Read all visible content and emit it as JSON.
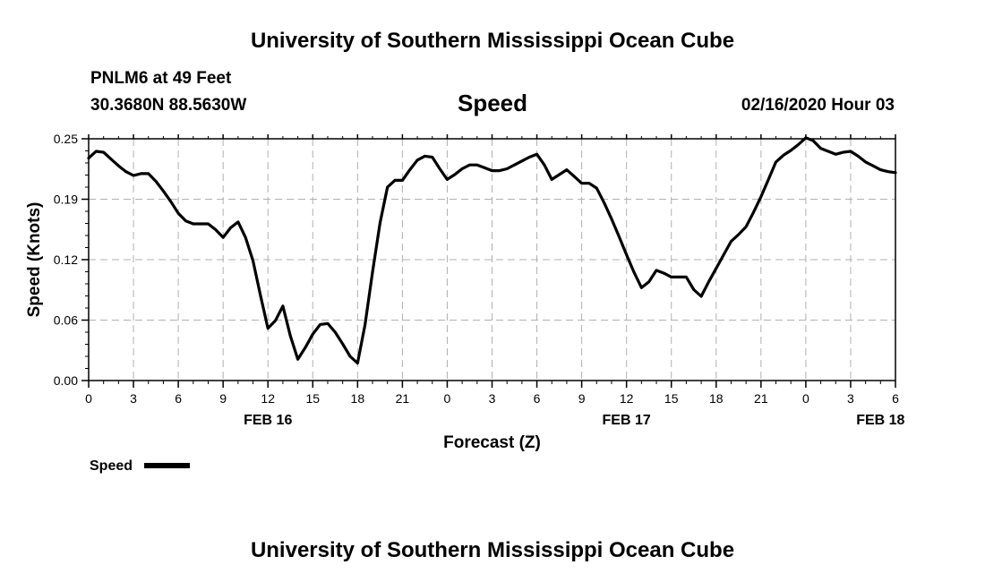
{
  "header": {
    "title": "University of Southern Mississippi Ocean Cube",
    "station": "PNLM6 at 49 Feet",
    "coordinates": "30.3680N 88.5630W",
    "panel_title": "Speed",
    "timestamp": "02/16/2020 Hour 03"
  },
  "footer": {
    "title": "University of Southern Mississippi Ocean Cube"
  },
  "colors": {
    "line": "#000000",
    "grid": "#b0b0b0"
  },
  "chart_data": {
    "type": "line",
    "xlabel": "Forecast (Z)",
    "ylabel": "Speed (Knots)",
    "xlim_hours_from_feb16_00z": [
      0,
      54
    ],
    "ylim": [
      0.0,
      0.25
    ],
    "grid": true,
    "y_ticks": [
      "0.00",
      "0.06",
      "0.12",
      "0.19",
      "0.25"
    ],
    "x_ticks": [
      "0",
      "3",
      "6",
      "9",
      "12",
      "15",
      "18",
      "21",
      "0",
      "3",
      "6",
      "9",
      "12",
      "15",
      "18",
      "21",
      "0",
      "3",
      "6"
    ],
    "date_labels": [
      "FEB 16",
      "FEB 17",
      "FEB 18"
    ],
    "legend": {
      "position": "bottom-left"
    },
    "series": [
      {
        "name": "Speed",
        "x_hours_from_feb16_00z": [
          0,
          0.5,
          1,
          1.5,
          2,
          2.5,
          3,
          3.5,
          4,
          4.5,
          5,
          5.5,
          6,
          6.5,
          7,
          7.5,
          8,
          8.5,
          9,
          9.5,
          10,
          10.5,
          11,
          11.5,
          12,
          12.5,
          13,
          13.5,
          14,
          14.5,
          15,
          15.5,
          16,
          16.5,
          17,
          17.5,
          18,
          18.5,
          19,
          19.5,
          20,
          20.5,
          21,
          21.5,
          22,
          22.5,
          23,
          23.5,
          24,
          24.5,
          25,
          25.5,
          26,
          26.5,
          27,
          27.5,
          28,
          28.5,
          29,
          29.5,
          30,
          30.5,
          31,
          31.5,
          32,
          32.5,
          33,
          33.5,
          34,
          34.5,
          35,
          35.5,
          36,
          36.5,
          37,
          37.5,
          38,
          38.5,
          39,
          39.5,
          40,
          40.5,
          41,
          41.5,
          42,
          42.5,
          43,
          43.5,
          44,
          44.5,
          45,
          45.5,
          46,
          46.5,
          47,
          47.5,
          48,
          48.5,
          49,
          49.5,
          50,
          50.5,
          51,
          51.5,
          52,
          52.5,
          53,
          53.5,
          54
        ],
        "values": [
          0.23,
          0.237,
          0.236,
          0.229,
          0.222,
          0.216,
          0.212,
          0.214,
          0.214,
          0.206,
          0.196,
          0.185,
          0.173,
          0.165,
          0.162,
          0.162,
          0.162,
          0.156,
          0.148,
          0.158,
          0.164,
          0.148,
          0.124,
          0.088,
          0.054,
          0.062,
          0.077,
          0.046,
          0.022,
          0.034,
          0.048,
          0.058,
          0.059,
          0.05,
          0.038,
          0.025,
          0.018,
          0.058,
          0.112,
          0.163,
          0.2,
          0.207,
          0.207,
          0.218,
          0.228,
          0.232,
          0.231,
          0.219,
          0.208,
          0.213,
          0.219,
          0.223,
          0.223,
          0.22,
          0.217,
          0.217,
          0.219,
          0.223,
          0.227,
          0.231,
          0.234,
          0.223,
          0.208,
          0.213,
          0.218,
          0.211,
          0.204,
          0.204,
          0.199,
          0.184,
          0.167,
          0.149,
          0.13,
          0.112,
          0.096,
          0.102,
          0.114,
          0.111,
          0.107,
          0.107,
          0.107,
          0.094,
          0.087,
          0.102,
          0.116,
          0.13,
          0.144,
          0.151,
          0.159,
          0.174,
          0.19,
          0.208,
          0.226,
          0.233,
          0.238,
          0.244,
          0.251,
          0.248,
          0.24,
          0.237,
          0.234,
          0.236,
          0.237,
          0.232,
          0.226,
          0.222,
          0.218,
          0.216,
          0.215
        ]
      }
    ]
  }
}
